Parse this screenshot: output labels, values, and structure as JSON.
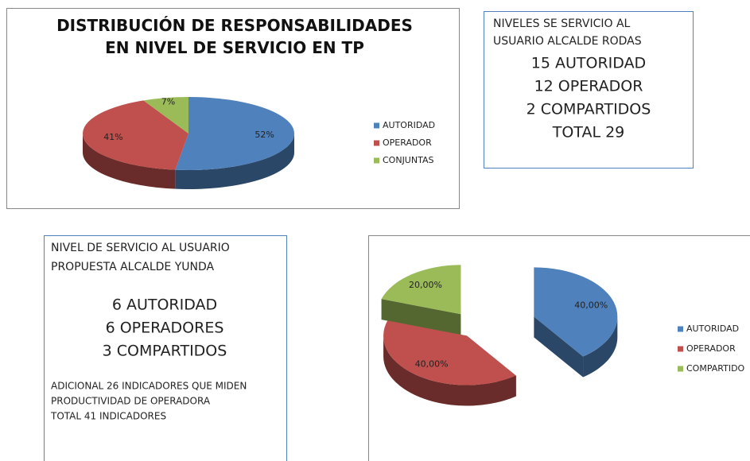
{
  "chart_data": [
    {
      "type": "pie3d",
      "title": "DISTRIBUCIÓN DE RESPONSABILIDADES EN NIVEL DE SERVICIO EN TP",
      "categories": [
        "AUTORIDAD",
        "OPERADOR",
        "CONJUNTAS"
      ],
      "values": [
        52,
        41,
        7
      ],
      "value_labels": [
        "52%",
        "41%",
        "7%"
      ],
      "colors": [
        "#4f81bd",
        "#c0504d",
        "#9bbb59"
      ],
      "legend": "right"
    },
    {
      "type": "pie3d",
      "categories": [
        "AUTORIDAD",
        "OPERADOR",
        "COMPARTIDO"
      ],
      "values": [
        40,
        40,
        20
      ],
      "value_labels": [
        "40,00%",
        "40,00%",
        "20,00%"
      ],
      "colors": [
        "#4f81bd",
        "#c0504d",
        "#9bbb59"
      ],
      "exploded": true,
      "legend": "right"
    }
  ],
  "text_boxes": [
    {
      "heading": [
        "NIVELES SE SERVICIO AL",
        "USUARIO ALCALDE RODAS"
      ],
      "items": [
        "15 AUTORIDAD",
        "12 OPERADOR",
        "2 COMPARTIDOS",
        "TOTAL 29"
      ]
    },
    {
      "heading": [
        "NIVEL DE SERVICIO AL USUARIO",
        "PROPUESTA ALCALDE YUNDA"
      ],
      "items": [
        "6 AUTORIDAD",
        "6 OPERADORES",
        "3 COMPARTIDOS"
      ],
      "notes": [
        "ADICIONAL 26 INDICADORES QUE MIDEN",
        "PRODUCTIVIDAD DE OPERADORA",
        "TOTAL 41  INDICADORES"
      ]
    }
  ]
}
